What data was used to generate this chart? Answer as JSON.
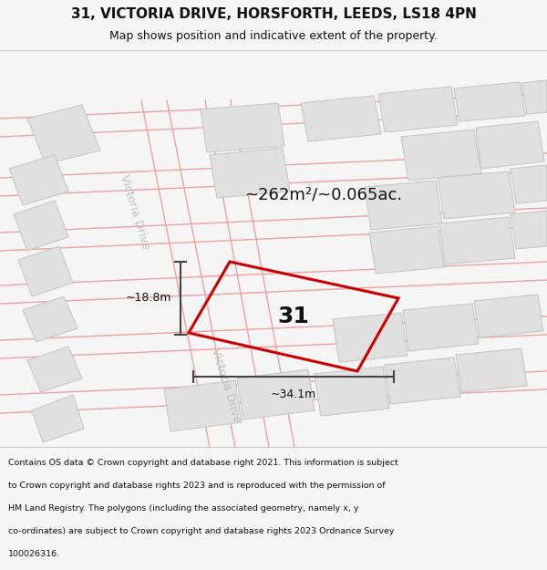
{
  "title_line1": "31, VICTORIA DRIVE, HORSFORTH, LEEDS, LS18 4PN",
  "title_line2": "Map shows position and indicative extent of the property.",
  "area_label": "~262m²/~0.065ac.",
  "number_label": "31",
  "dim_width": "~34.1m",
  "dim_height": "~18.8m",
  "road_label_top": "Victoria Drive",
  "road_label_bottom": "Victoria Drive",
  "footer_lines": [
    "Contains OS data © Crown copyright and database right 2021. This information is subject",
    "to Crown copyright and database rights 2023 and is reproduced with the permission of",
    "HM Land Registry. The polygons (including the associated geometry, namely x, y",
    "co-ordinates) are subject to Crown copyright and database rights 2023 Ordnance Survey",
    "100026316."
  ],
  "bg_color": "#f5f5f5",
  "map_bg": "#ffffff",
  "building_fill": "#e0e0e0",
  "building_edge": "#c8c8c8",
  "road_line_color": "#f0a0a0",
  "highlight_color": "#cc0000",
  "dim_line_color": "#444444",
  "text_color": "#111111",
  "road_text_color": "#c0c0c0"
}
